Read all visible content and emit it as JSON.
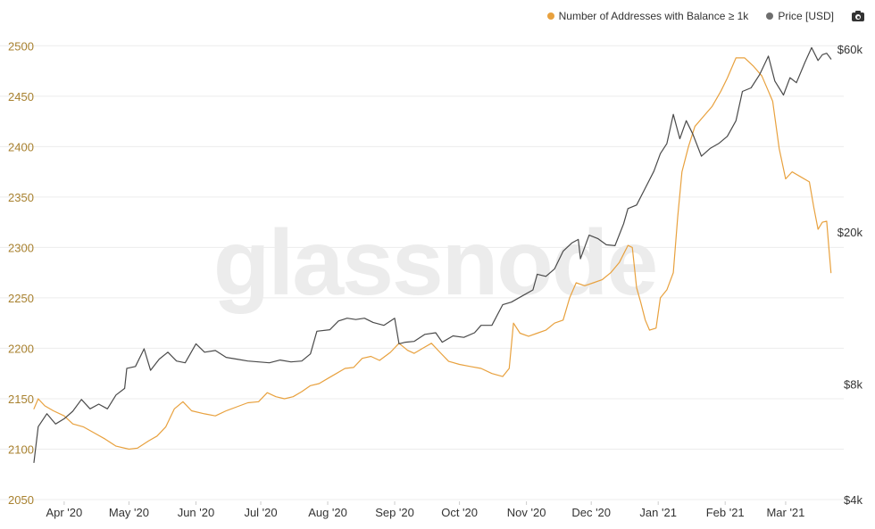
{
  "legend": {
    "series1_label": "Number of Addresses with Balance ≥ 1k",
    "series2_label": "Price [USD]",
    "series1_color": "#e8a13e",
    "series2_color": "#6e6e6e",
    "camera_icon": "camera-icon"
  },
  "watermark": "glassnode",
  "chart_data": {
    "type": "line",
    "title": "",
    "xlabel": "",
    "ylabel": "",
    "x_range": [
      "2020-03-18",
      "2021-03-25"
    ],
    "x_ticks": [
      "Apr '20",
      "May '20",
      "Jun '20",
      "Jul '20",
      "Aug '20",
      "Sep '20",
      "Oct '20",
      "Nov '20",
      "Dec '20",
      "Jan '21",
      "Feb '21",
      "Mar '21"
    ],
    "x_tick_dates": [
      "2020-04-01",
      "2020-05-01",
      "2020-06-01",
      "2020-07-01",
      "2020-08-01",
      "2020-09-01",
      "2020-10-01",
      "2020-11-01",
      "2020-12-01",
      "2021-01-01",
      "2021-02-01",
      "2021-03-01"
    ],
    "y_left": {
      "ticks": [
        "2050",
        "2100",
        "2150",
        "2200",
        "2250",
        "2300",
        "2350",
        "2400",
        "2450",
        "2500"
      ],
      "tick_values": [
        2050,
        2100,
        2150,
        2200,
        2250,
        2300,
        2350,
        2400,
        2450,
        2500
      ],
      "range": [
        2050,
        2510
      ],
      "color": "#a8812f"
    },
    "y_right": {
      "scale": "log",
      "ticks": [
        "$4k",
        "$8k",
        "$20k",
        "$60k"
      ],
      "tick_values": [
        4000,
        8000,
        20000,
        60000
      ],
      "range": [
        4000,
        65000
      ]
    },
    "grid": true,
    "series": [
      {
        "name": "Number of Addresses with Balance ≥ 1k",
        "axis": "left",
        "color": "#e8a13e",
        "points": [
          [
            "2020-03-18",
            2140
          ],
          [
            "2020-03-20",
            2150
          ],
          [
            "2020-03-23",
            2143
          ],
          [
            "2020-03-27",
            2138
          ],
          [
            "2020-04-01",
            2133
          ],
          [
            "2020-04-05",
            2125
          ],
          [
            "2020-04-10",
            2122
          ],
          [
            "2020-04-15",
            2116
          ],
          [
            "2020-04-20",
            2110
          ],
          [
            "2020-04-25",
            2103
          ],
          [
            "2020-05-01",
            2100
          ],
          [
            "2020-05-05",
            2101
          ],
          [
            "2020-05-10",
            2108
          ],
          [
            "2020-05-14",
            2113
          ],
          [
            "2020-05-18",
            2122
          ],
          [
            "2020-05-22",
            2140
          ],
          [
            "2020-05-26",
            2147
          ],
          [
            "2020-05-30",
            2138
          ],
          [
            "2020-06-05",
            2135
          ],
          [
            "2020-06-10",
            2133
          ],
          [
            "2020-06-15",
            2138
          ],
          [
            "2020-06-20",
            2142
          ],
          [
            "2020-06-25",
            2146
          ],
          [
            "2020-06-30",
            2147
          ],
          [
            "2020-07-04",
            2156
          ],
          [
            "2020-07-08",
            2152
          ],
          [
            "2020-07-12",
            2150
          ],
          [
            "2020-07-16",
            2152
          ],
          [
            "2020-07-20",
            2157
          ],
          [
            "2020-07-24",
            2163
          ],
          [
            "2020-07-28",
            2165
          ],
          [
            "2020-08-01",
            2170
          ],
          [
            "2020-08-05",
            2175
          ],
          [
            "2020-08-09",
            2180
          ],
          [
            "2020-08-13",
            2181
          ],
          [
            "2020-08-17",
            2190
          ],
          [
            "2020-08-21",
            2192
          ],
          [
            "2020-08-25",
            2188
          ],
          [
            "2020-08-30",
            2196
          ],
          [
            "2020-09-03",
            2205
          ],
          [
            "2020-09-07",
            2198
          ],
          [
            "2020-09-10",
            2195
          ],
          [
            "2020-09-14",
            2200
          ],
          [
            "2020-09-18",
            2205
          ],
          [
            "2020-09-22",
            2196
          ],
          [
            "2020-09-26",
            2187
          ],
          [
            "2020-10-01",
            2184
          ],
          [
            "2020-10-06",
            2182
          ],
          [
            "2020-10-11",
            2180
          ],
          [
            "2020-10-16",
            2175
          ],
          [
            "2020-10-21",
            2172
          ],
          [
            "2020-10-24",
            2180
          ],
          [
            "2020-10-26",
            2225
          ],
          [
            "2020-10-29",
            2215
          ],
          [
            "2020-11-02",
            2212
          ],
          [
            "2020-11-06",
            2215
          ],
          [
            "2020-11-10",
            2218
          ],
          [
            "2020-11-14",
            2225
          ],
          [
            "2020-11-18",
            2228
          ],
          [
            "2020-11-21",
            2250
          ],
          [
            "2020-11-24",
            2265
          ],
          [
            "2020-11-28",
            2262
          ],
          [
            "2020-12-02",
            2265
          ],
          [
            "2020-12-06",
            2268
          ],
          [
            "2020-12-10",
            2275
          ],
          [
            "2020-12-14",
            2285
          ],
          [
            "2020-12-18",
            2302
          ],
          [
            "2020-12-20",
            2300
          ],
          [
            "2020-12-22",
            2260
          ],
          [
            "2020-12-24",
            2245
          ],
          [
            "2020-12-26",
            2228
          ],
          [
            "2020-12-28",
            2218
          ],
          [
            "2020-12-31",
            2220
          ],
          [
            "2021-01-02",
            2250
          ],
          [
            "2021-01-05",
            2258
          ],
          [
            "2021-01-08",
            2275
          ],
          [
            "2021-01-10",
            2330
          ],
          [
            "2021-01-12",
            2375
          ],
          [
            "2021-01-15",
            2400
          ],
          [
            "2021-01-18",
            2420
          ],
          [
            "2021-01-22",
            2430
          ],
          [
            "2021-01-26",
            2440
          ],
          [
            "2021-01-30",
            2455
          ],
          [
            "2021-02-02",
            2468
          ],
          [
            "2021-02-06",
            2488
          ],
          [
            "2021-02-10",
            2488
          ],
          [
            "2021-02-14",
            2480
          ],
          [
            "2021-02-18",
            2470
          ],
          [
            "2021-02-21",
            2455
          ],
          [
            "2021-02-23",
            2445
          ],
          [
            "2021-02-26",
            2398
          ],
          [
            "2021-03-01",
            2368
          ],
          [
            "2021-03-04",
            2375
          ],
          [
            "2021-03-08",
            2370
          ],
          [
            "2021-03-12",
            2365
          ],
          [
            "2021-03-14",
            2340
          ],
          [
            "2021-03-16",
            2318
          ],
          [
            "2021-03-18",
            2325
          ],
          [
            "2021-03-20",
            2326
          ],
          [
            "2021-03-21",
            2300
          ],
          [
            "2021-03-22",
            2275
          ]
        ]
      },
      {
        "name": "Price [USD]",
        "axis": "right",
        "color": "#4a4a4a",
        "points": [
          [
            "2020-03-18",
            5000
          ],
          [
            "2020-03-20",
            6200
          ],
          [
            "2020-03-24",
            6700
          ],
          [
            "2020-03-28",
            6300
          ],
          [
            "2020-04-01",
            6500
          ],
          [
            "2020-04-05",
            6800
          ],
          [
            "2020-04-09",
            7300
          ],
          [
            "2020-04-13",
            6900
          ],
          [
            "2020-04-17",
            7100
          ],
          [
            "2020-04-21",
            6900
          ],
          [
            "2020-04-25",
            7500
          ],
          [
            "2020-04-29",
            7800
          ],
          [
            "2020-04-30",
            8800
          ],
          [
            "2020-05-04",
            8900
          ],
          [
            "2020-05-08",
            9900
          ],
          [
            "2020-05-11",
            8700
          ],
          [
            "2020-05-15",
            9300
          ],
          [
            "2020-05-19",
            9700
          ],
          [
            "2020-05-23",
            9200
          ],
          [
            "2020-05-27",
            9100
          ],
          [
            "2020-06-01",
            10200
          ],
          [
            "2020-06-05",
            9700
          ],
          [
            "2020-06-10",
            9800
          ],
          [
            "2020-06-15",
            9400
          ],
          [
            "2020-06-20",
            9300
          ],
          [
            "2020-06-25",
            9200
          ],
          [
            "2020-06-30",
            9150
          ],
          [
            "2020-07-05",
            9100
          ],
          [
            "2020-07-10",
            9250
          ],
          [
            "2020-07-15",
            9150
          ],
          [
            "2020-07-20",
            9200
          ],
          [
            "2020-07-24",
            9600
          ],
          [
            "2020-07-27",
            11000
          ],
          [
            "2020-08-02",
            11100
          ],
          [
            "2020-08-06",
            11700
          ],
          [
            "2020-08-10",
            11900
          ],
          [
            "2020-08-14",
            11800
          ],
          [
            "2020-08-18",
            11900
          ],
          [
            "2020-08-22",
            11600
          ],
          [
            "2020-08-27",
            11400
          ],
          [
            "2020-09-01",
            11900
          ],
          [
            "2020-09-03",
            10200
          ],
          [
            "2020-09-06",
            10300
          ],
          [
            "2020-09-10",
            10350
          ],
          [
            "2020-09-15",
            10800
          ],
          [
            "2020-09-20",
            10900
          ],
          [
            "2020-09-23",
            10300
          ],
          [
            "2020-09-28",
            10700
          ],
          [
            "2020-10-03",
            10600
          ],
          [
            "2020-10-08",
            10900
          ],
          [
            "2020-10-11",
            11400
          ],
          [
            "2020-10-16",
            11400
          ],
          [
            "2020-10-21",
            12900
          ],
          [
            "2020-10-25",
            13100
          ],
          [
            "2020-10-30",
            13600
          ],
          [
            "2020-11-04",
            14100
          ],
          [
            "2020-11-06",
            15500
          ],
          [
            "2020-11-10",
            15300
          ],
          [
            "2020-11-14",
            16000
          ],
          [
            "2020-11-18",
            17800
          ],
          [
            "2020-11-22",
            18700
          ],
          [
            "2020-11-25",
            19100
          ],
          [
            "2020-11-26",
            17000
          ],
          [
            "2020-11-30",
            19600
          ],
          [
            "2020-12-04",
            19200
          ],
          [
            "2020-12-08",
            18500
          ],
          [
            "2020-12-12",
            18400
          ],
          [
            "2020-12-16",
            21000
          ],
          [
            "2020-12-18",
            23000
          ],
          [
            "2020-12-22",
            23500
          ],
          [
            "2020-12-26",
            26000
          ],
          [
            "2020-12-30",
            28800
          ],
          [
            "2021-01-02",
            32000
          ],
          [
            "2021-01-05",
            34000
          ],
          [
            "2021-01-08",
            40500
          ],
          [
            "2021-01-11",
            35000
          ],
          [
            "2021-01-14",
            39000
          ],
          [
            "2021-01-17",
            36000
          ],
          [
            "2021-01-21",
            31500
          ],
          [
            "2021-01-25",
            33000
          ],
          [
            "2021-01-29",
            34000
          ],
          [
            "2021-02-02",
            35500
          ],
          [
            "2021-02-06",
            39000
          ],
          [
            "2021-02-09",
            46500
          ],
          [
            "2021-02-13",
            47500
          ],
          [
            "2021-02-17",
            51500
          ],
          [
            "2021-02-21",
            57500
          ],
          [
            "2021-02-24",
            49500
          ],
          [
            "2021-02-28",
            45500
          ],
          [
            "2021-03-03",
            50500
          ],
          [
            "2021-03-06",
            49000
          ],
          [
            "2021-03-10",
            55500
          ],
          [
            "2021-03-13",
            60500
          ],
          [
            "2021-03-16",
            56000
          ],
          [
            "2021-03-18",
            58000
          ],
          [
            "2021-03-20",
            58500
          ],
          [
            "2021-03-22",
            56500
          ]
        ]
      }
    ]
  }
}
